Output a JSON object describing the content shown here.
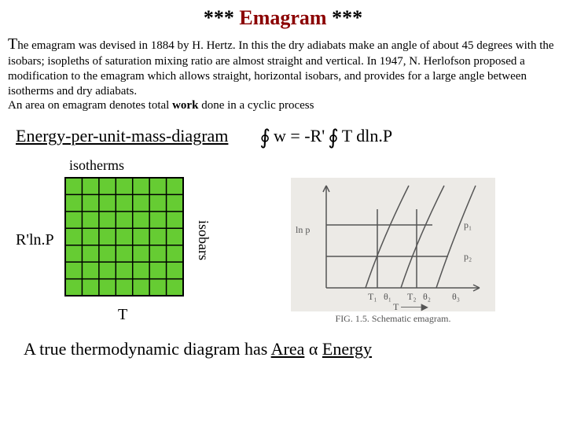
{
  "title": {
    "stars_l": "***",
    "word": "Emagram",
    "stars_r": "***"
  },
  "paragraph": {
    "drop": "T",
    "line1a": "he emagram was devised in 1884 by H. Hertz. In this the dry adiabats make an angle of about",
    "line2": "45 degrees with the isobars; isopleths of saturation mixing ratio are almost straight and vertical. In 1947, N. Herlofson proposed a modification to the emagram which allows straight, horizontal isobars, and provides for a large angle between isotherms and dry adiabats.",
    "line3a": "An area on emagram denotes total ",
    "line3b": "work",
    "line3c": " done in a cyclic process"
  },
  "formula": {
    "left": "Energy-per-unit-mass-diagram",
    "eq1": "w = -R'",
    "eq2": "T dln.P"
  },
  "left_diagram": {
    "isotherms": "isotherms",
    "isobars": "isobars",
    "rlnP": "R'ln.P",
    "T": "T",
    "grid": {
      "fill": "#66cc33",
      "stroke": "#000000",
      "cells": 7,
      "size": 150
    }
  },
  "right_fig": {
    "caption": "FIG. 1.5. Schematic emagram.",
    "labels": {
      "lnp": "ln p",
      "p1": "p₁",
      "p2": "p₂",
      "T1": "T₁",
      "th1": "θ₁",
      "T2": "T₂",
      "th2": "θ₂",
      "th3": "θ₃",
      "Tarrow": "T"
    },
    "colors": {
      "bg": "#eceae6",
      "line": "#555555",
      "text": "#555555"
    }
  },
  "bottom": {
    "a": "A true thermodynamic diagram has ",
    "area": "Area",
    "prop": " α ",
    "energy": "Energy"
  }
}
